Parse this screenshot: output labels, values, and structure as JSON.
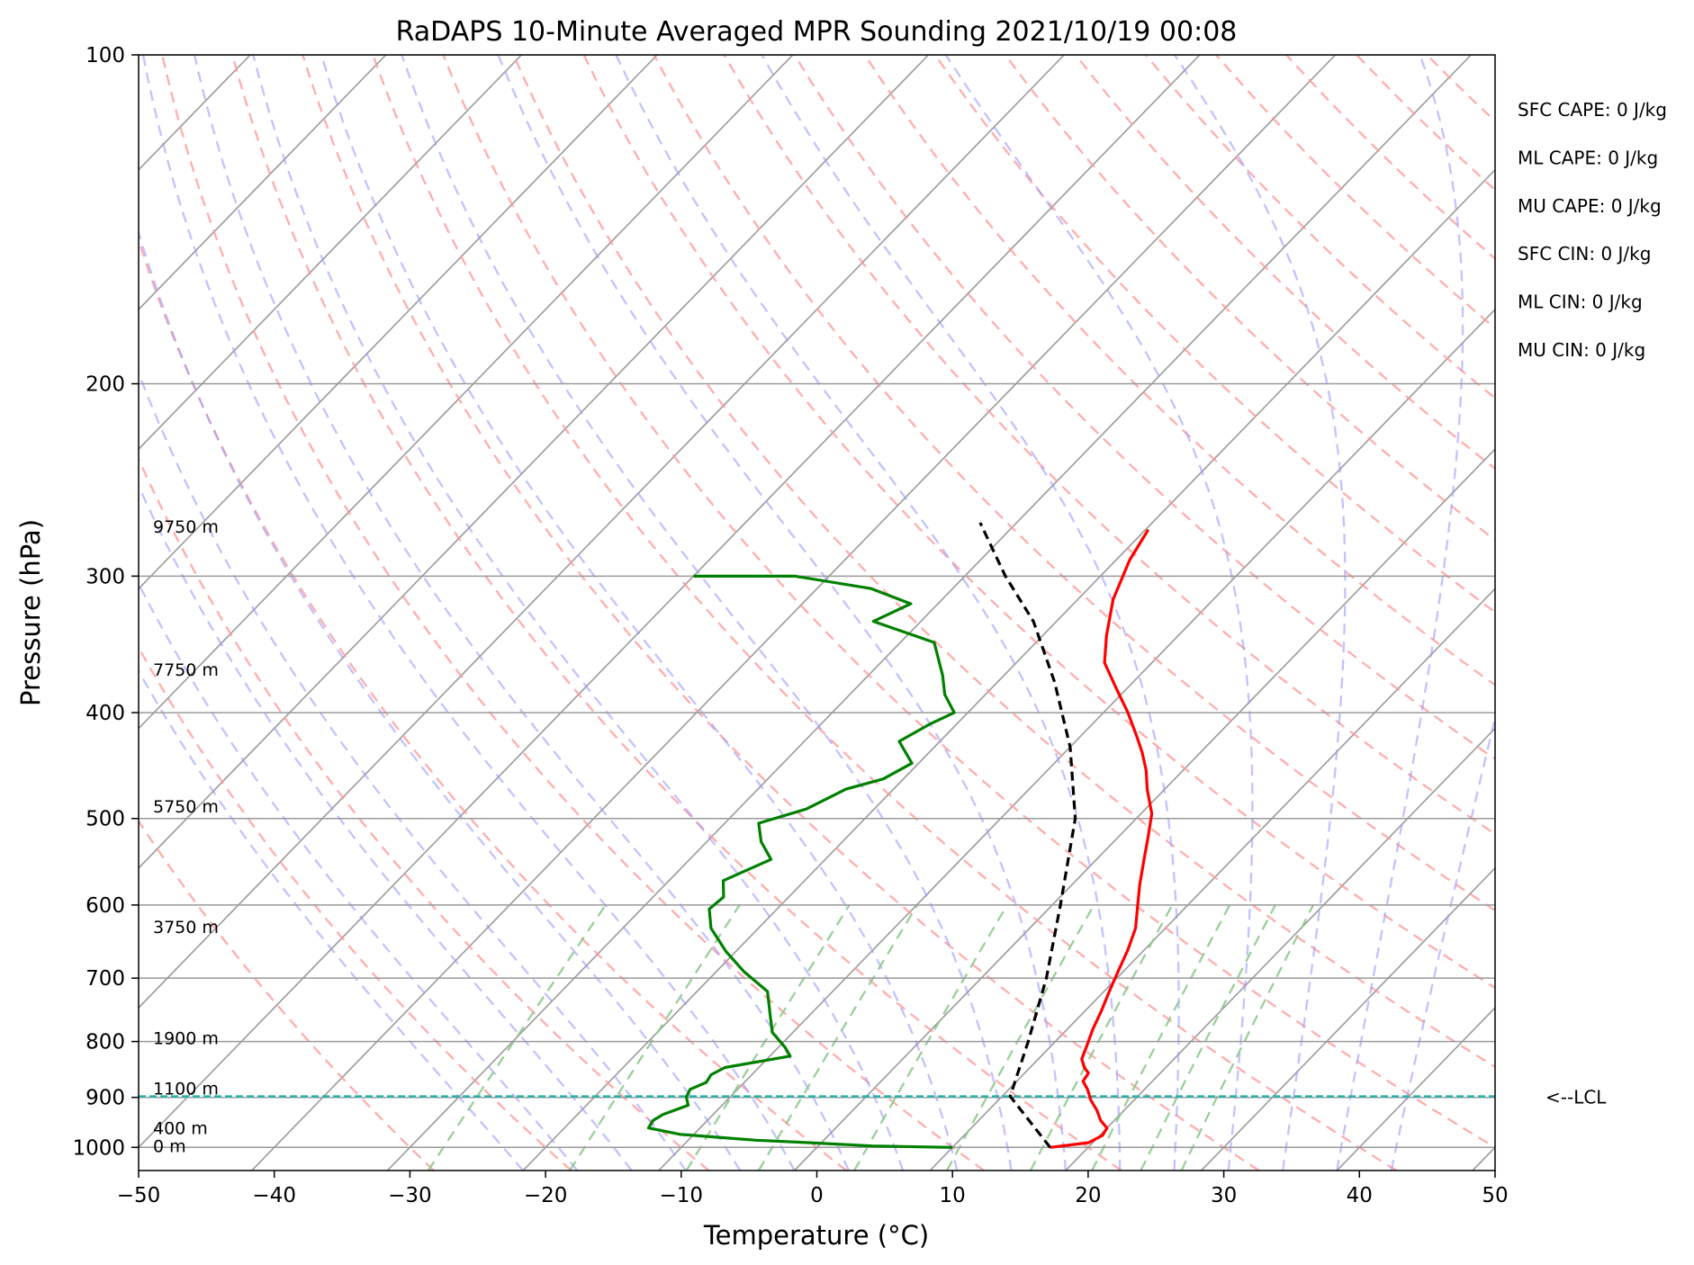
{
  "chart_data": {
    "type": "line",
    "subtype": "skew-t log-p diagram",
    "title": "RaDAPS 10-Minute Averaged MPR Sounding 2021/10/19 00:08",
    "xlabel": "Temperature (°C)",
    "ylabel": "Pressure (hPa)",
    "xlim": [
      -50,
      50
    ],
    "ylim": [
      1050,
      100
    ],
    "y_scale": "log",
    "grid": true,
    "x_ticks": [
      "−50",
      "−40",
      "−30",
      "−20",
      "−10",
      "0",
      "10",
      "20",
      "30",
      "40",
      "50"
    ],
    "x_tick_values": [
      -50,
      -40,
      -30,
      -20,
      -10,
      0,
      10,
      20,
      30,
      40,
      50
    ],
    "y_ticks": [
      "1000",
      "900",
      "800",
      "700",
      "600",
      "500",
      "400",
      "300",
      "200",
      "100"
    ],
    "y_tick_values": [
      1000,
      900,
      800,
      700,
      600,
      500,
      400,
      300,
      200,
      100
    ],
    "colors": {
      "temperature": "#ff0000",
      "dewpoint": "#008000",
      "parcel": "#000000",
      "dry_adiabats": "#ff9999",
      "moist_adiabats": "#9999ff",
      "mixing_ratio": "#8fca8f",
      "isotherms": "#9a9a9a",
      "lcl": "#20b2aa"
    },
    "series": [
      {
        "name": "temperature",
        "x": [
          17.2,
          19.7,
          20.2,
          20.0,
          19.0,
          18.0,
          16.8,
          15.8,
          14.9,
          14.7,
          14.0,
          13.2,
          12.7,
          11.9,
          11.2,
          10.4,
          9.6,
          8.8,
          7.8,
          6.3,
          5.0,
          3.5,
          2.2,
          0.8,
          -1.3,
          -2.7,
          -4.3,
          -5.9,
          -8.2,
          -10.8,
          -13.5,
          -15.3,
          -17.4,
          -19.0,
          -19.8
        ],
        "y": [
          1000,
          990,
          975,
          960,
          945,
          925,
          905,
          885,
          870,
          855,
          845,
          830,
          810,
          780,
          750,
          720,
          690,
          660,
          630,
          600,
          575,
          545,
          520,
          495,
          470,
          452,
          435,
          420,
          400,
          380,
          360,
          340,
          315,
          290,
          272
        ]
      },
      {
        "name": "dewpoint",
        "x": [
          10.0,
          4.0,
          -1.0,
          -5.0,
          -7.5,
          -11.0,
          -13.8,
          -14.0,
          -13.7,
          -12.5,
          -13.2,
          -13.5,
          -12.8,
          -13.0,
          -12.5,
          -8.5,
          -9.5,
          -11.5,
          -13.0,
          -14.8,
          -18.0,
          -20.7,
          -23.5,
          -25.0,
          -24.8,
          -26.0,
          -24.0,
          -26.0,
          -27.5,
          -25.0,
          -23.5,
          -21.5,
          -20.5,
          -23.0,
          -22.0,
          -21.0,
          -23.0,
          -24.5,
          -27.5,
          -33.5,
          -32.0,
          -36.0,
          -42.5,
          -50.0
        ],
        "y": [
          1000,
          997,
          990,
          985,
          980,
          973,
          960,
          945,
          933,
          915,
          900,
          885,
          872,
          858,
          845,
          825,
          810,
          785,
          755,
          720,
          690,
          662,
          630,
          605,
          590,
          570,
          545,
          525,
          505,
          490,
          470,
          460,
          445,
          425,
          410,
          400,
          385,
          370,
          345,
          330,
          318,
          308,
          300,
          300
        ]
      },
      {
        "name": "parcel",
        "x": [
          17.2,
          10.6,
          8.0,
          4.8,
          0.6,
          -4.5,
          -10.0,
          -15.8,
          -21.7,
          -27.0,
          -32.7
        ],
        "y": [
          1000,
          898,
          800,
          700,
          600,
          500,
          430,
          375,
          330,
          300,
          268
        ]
      }
    ],
    "lcl": {
      "pressure": 898,
      "label": "<--LCL"
    },
    "height_labels": [
      {
        "text": "9750 m",
        "pressure": 270
      },
      {
        "text": "7750 m",
        "pressure": 365
      },
      {
        "text": "5750 m",
        "pressure": 487
      },
      {
        "text": "3750 m",
        "pressure": 628
      },
      {
        "text": "1900 m",
        "pressure": 794
      },
      {
        "text": "1100 m",
        "pressure": 883
      },
      {
        "text": "400 m",
        "pressure": 960
      },
      {
        "text": "0 m",
        "pressure": 997
      }
    ],
    "indices": [
      "SFC CAPE: 0 J/kg",
      "ML CAPE: 0 J/kg",
      "MU CAPE: 0 J/kg",
      "SFC CIN: 0 J/kg",
      "ML CIN: 0 J/kg",
      "MU CIN: 0 J/kg"
    ]
  }
}
